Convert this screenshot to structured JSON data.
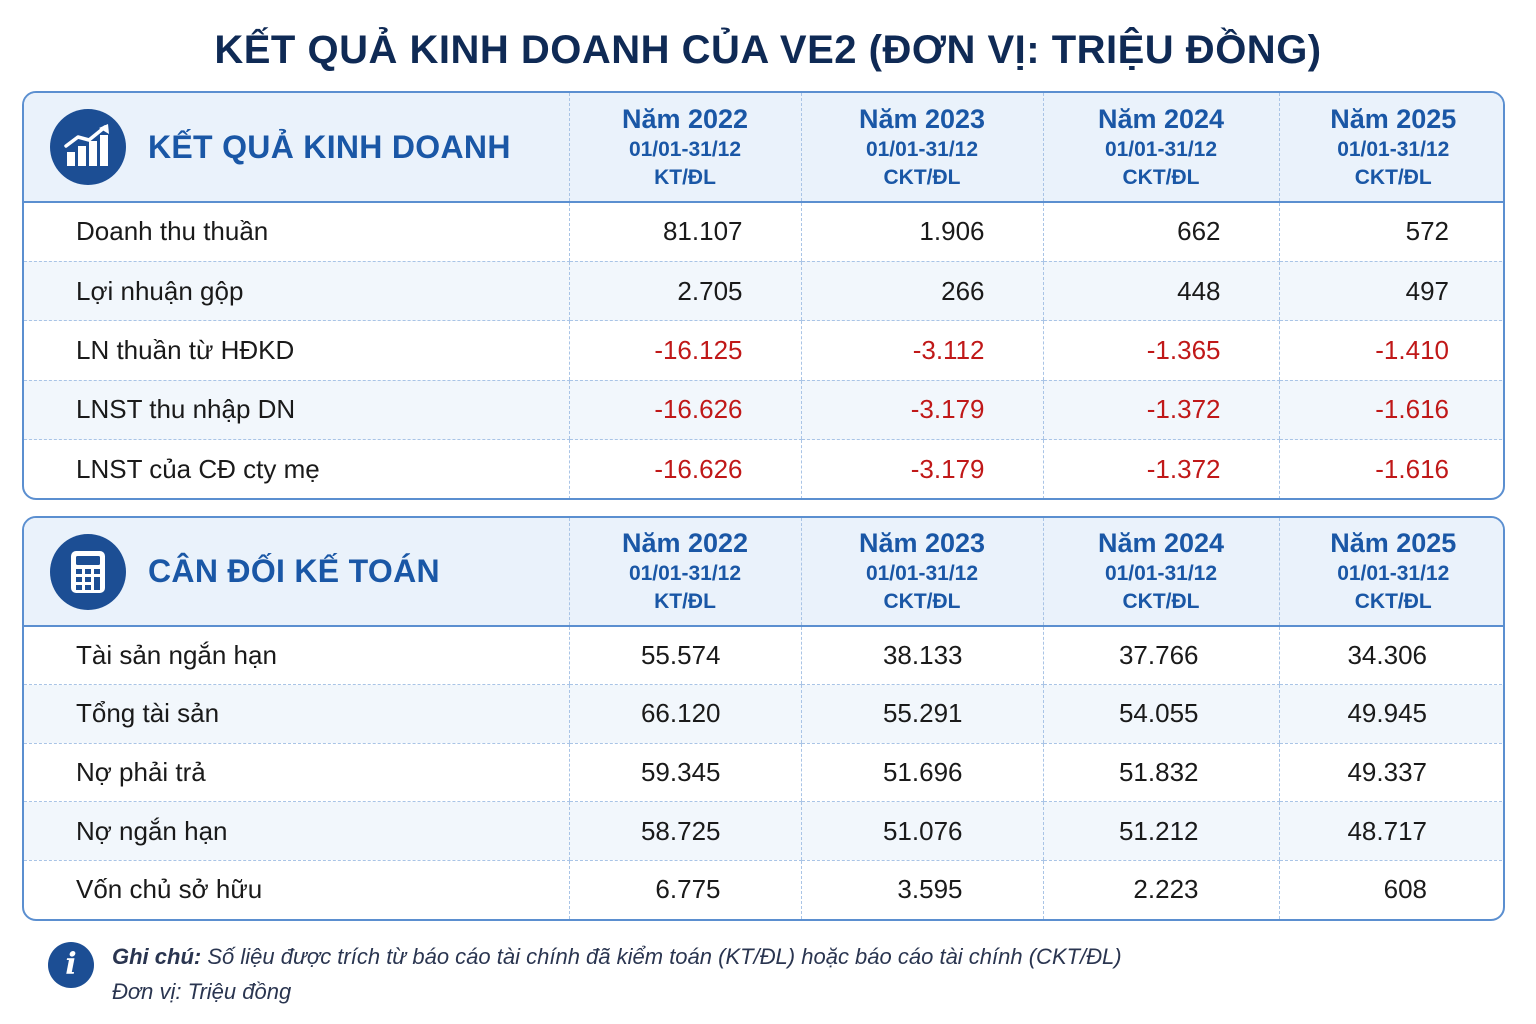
{
  "title": "KẾT QUẢ KINH DOANH CỦA VE2 (ĐƠN VỊ: TRIỆU ĐỒNG)",
  "income": {
    "label": "KẾT QUẢ KINH DOANH",
    "icon": "bar-chart-growth-icon",
    "columns": [
      {
        "year": "Năm 2022",
        "period": "01/01-31/12",
        "audit": "KT/ĐL"
      },
      {
        "year": "Năm 2023",
        "period": "01/01-31/12",
        "audit": "CKT/ĐL"
      },
      {
        "year": "Năm 2024",
        "period": "01/01-31/12",
        "audit": "CKT/ĐL"
      },
      {
        "year": "Năm 2025",
        "period": "01/01-31/12",
        "audit": "CKT/ĐL"
      }
    ],
    "rows": [
      {
        "label": "Doanh thu thuần",
        "values": [
          "81.107",
          "1.906",
          "662",
          "572"
        ]
      },
      {
        "label": "Lợi nhuận gộp",
        "values": [
          "2.705",
          "266",
          "448",
          "497"
        ]
      },
      {
        "label": "LN thuần từ HĐKD",
        "values": [
          "-16.125",
          "-3.112",
          "-1.365",
          "-1.410"
        ]
      },
      {
        "label": "LNST thu nhập DN",
        "values": [
          "-16.626",
          "-3.179",
          "-1.372",
          "-1.616"
        ]
      },
      {
        "label": "LNST của CĐ cty mẹ",
        "values": [
          "-16.626",
          "-3.179",
          "-1.372",
          "-1.616"
        ]
      }
    ]
  },
  "balance": {
    "label": "CÂN ĐỐI KẾ TOÁN",
    "icon": "calculator-icon",
    "columns": [
      {
        "year": "Năm 2022",
        "period": "01/01-31/12",
        "audit": "KT/ĐL"
      },
      {
        "year": "Năm 2023",
        "period": "01/01-31/12",
        "audit": "CKT/ĐL"
      },
      {
        "year": "Năm 2024",
        "period": "01/01-31/12",
        "audit": "CKT/ĐL"
      },
      {
        "year": "Năm 2025",
        "period": "01/01-31/12",
        "audit": "CKT/ĐL"
      }
    ],
    "rows": [
      {
        "label": "Tài sản ngắn hạn",
        "values": [
          "55.574",
          "38.133",
          "37.766",
          "34.306"
        ]
      },
      {
        "label": "Tổng tài sản",
        "values": [
          "66.120",
          "55.291",
          "54.055",
          "49.945"
        ]
      },
      {
        "label": "Nợ phải trả",
        "values": [
          "59.345",
          "51.696",
          "51.832",
          "49.337"
        ]
      },
      {
        "label": "Nợ ngắn hạn",
        "values": [
          "58.725",
          "51.076",
          "51.212",
          "48.717"
        ]
      },
      {
        "label": "Vốn chủ sở hữu",
        "values": [
          "6.775",
          "3.595",
          "2.223",
          "608"
        ]
      }
    ]
  },
  "note": {
    "icon": "info-icon",
    "icon_glyph": "i",
    "label": "Ghi chú:",
    "text": " Số liệu được trích từ báo cáo tài chính đã kiểm toán (KT/ĐL) hoặc báo cáo tài chính (CKT/ĐL)",
    "unit": "Đơn vị: Triệu đồng"
  },
  "colors": {
    "title": "#0f2a55",
    "accent": "#1a57a6",
    "icon_bg": "#1c4e94",
    "border": "#5b8fd0",
    "negative": "#c01818",
    "header_bg": "#eaf2fb"
  }
}
